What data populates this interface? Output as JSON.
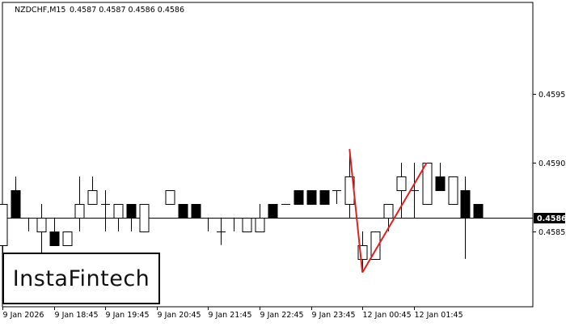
{
  "header": {
    "symbol": "NZDCHF,M15",
    "ohlc": "0.4587 0.4587 0.4586 0.4586"
  },
  "logo": {
    "text": "InstaFintech"
  },
  "colors": {
    "background": "#ffffff",
    "axis": "#000000",
    "candle_bull_fill": "#ffffff",
    "candle_bear_fill": "#000000",
    "pattern_line": "#e02020",
    "price_line": "#000000",
    "current_price_bg": "#000000",
    "current_price_text": "#ffffff"
  },
  "chart_data": {
    "type": "candlestick",
    "title": "NZDCHF,M15",
    "ylim": [
      0.45795,
      0.46017
    ],
    "y_ticks": [
      0.4585,
      0.459,
      0.4595
    ],
    "y_tick_labels": [
      "0.4585",
      "0.4590",
      "0.4595"
    ],
    "current_price": 0.4586,
    "current_price_label": "0.4586",
    "x_tick_labels": [
      "9 Jan 2026",
      "9 Jan 18:45",
      "9 Jan 19:45",
      "9 Jan 20:45",
      "9 Jan 21:45",
      "9 Jan 22:45",
      "9 Jan 23:45",
      "12 Jan 00:45",
      "12 Jan 01:45"
    ],
    "candles": [
      {
        "o": 0.4584,
        "h": 0.4587,
        "l": 0.4583,
        "c": 0.4587
      },
      {
        "o": 0.4588,
        "h": 0.4589,
        "l": 0.4586,
        "c": 0.4586
      },
      {
        "o": 0.4586,
        "h": 0.4586,
        "l": 0.4585,
        "c": 0.4586
      },
      {
        "o": 0.4585,
        "h": 0.4587,
        "l": 0.4583,
        "c": 0.4586
      },
      {
        "o": 0.4585,
        "h": 0.4586,
        "l": 0.4584,
        "c": 0.4584
      },
      {
        "o": 0.4584,
        "h": 0.4585,
        "l": 0.4584,
        "c": 0.4585
      },
      {
        "o": 0.4586,
        "h": 0.4589,
        "l": 0.4585,
        "c": 0.4587
      },
      {
        "o": 0.4587,
        "h": 0.4589,
        "l": 0.4587,
        "c": 0.4588
      },
      {
        "o": 0.4587,
        "h": 0.4588,
        "l": 0.4585,
        "c": 0.4587
      },
      {
        "o": 0.4586,
        "h": 0.4587,
        "l": 0.4585,
        "c": 0.4587
      },
      {
        "o": 0.4587,
        "h": 0.4587,
        "l": 0.4585,
        "c": 0.4586
      },
      {
        "o": 0.4585,
        "h": 0.4587,
        "l": 0.4585,
        "c": 0.4587
      },
      {
        "o": 0.4586,
        "h": 0.4586,
        "l": 0.4586,
        "c": 0.4586
      },
      {
        "o": 0.4587,
        "h": 0.4588,
        "l": 0.4587,
        "c": 0.4588
      },
      {
        "o": 0.4587,
        "h": 0.4587,
        "l": 0.4586,
        "c": 0.4586
      },
      {
        "o": 0.4587,
        "h": 0.4587,
        "l": 0.4586,
        "c": 0.4586
      },
      {
        "o": 0.4586,
        "h": 0.4586,
        "l": 0.4585,
        "c": 0.4586
      },
      {
        "o": 0.4585,
        "h": 0.4586,
        "l": 0.4584,
        "c": 0.4585
      },
      {
        "o": 0.4586,
        "h": 0.4586,
        "l": 0.4585,
        "c": 0.4586
      },
      {
        "o": 0.4585,
        "h": 0.4586,
        "l": 0.4585,
        "c": 0.4586
      },
      {
        "o": 0.4585,
        "h": 0.4587,
        "l": 0.4585,
        "c": 0.4586
      },
      {
        "o": 0.4587,
        "h": 0.4587,
        "l": 0.4586,
        "c": 0.4586
      },
      {
        "o": 0.4587,
        "h": 0.4587,
        "l": 0.4587,
        "c": 0.4587
      },
      {
        "o": 0.4588,
        "h": 0.4588,
        "l": 0.4587,
        "c": 0.4587
      },
      {
        "o": 0.4588,
        "h": 0.4588,
        "l": 0.4587,
        "c": 0.4587
      },
      {
        "o": 0.4588,
        "h": 0.4588,
        "l": 0.4587,
        "c": 0.4587
      },
      {
        "o": 0.4588,
        "h": 0.4588,
        "l": 0.4587,
        "c": 0.4588
      },
      {
        "o": 0.4587,
        "h": 0.4591,
        "l": 0.4586,
        "c": 0.4589
      },
      {
        "o": 0.4583,
        "h": 0.4585,
        "l": 0.4582,
        "c": 0.4584
      },
      {
        "o": 0.4583,
        "h": 0.4585,
        "l": 0.4583,
        "c": 0.4585
      },
      {
        "o": 0.4586,
        "h": 0.4587,
        "l": 0.4585,
        "c": 0.4587
      },
      {
        "o": 0.4588,
        "h": 0.459,
        "l": 0.4586,
        "c": 0.4589
      },
      {
        "o": 0.4588,
        "h": 0.459,
        "l": 0.4586,
        "c": 0.4588
      },
      {
        "o": 0.4587,
        "h": 0.459,
        "l": 0.4587,
        "c": 0.459
      },
      {
        "o": 0.4589,
        "h": 0.459,
        "l": 0.4588,
        "c": 0.4588
      },
      {
        "o": 0.4587,
        "h": 0.4589,
        "l": 0.4587,
        "c": 0.4589
      },
      {
        "o": 0.4588,
        "h": 0.4589,
        "l": 0.4583,
        "c": 0.4586
      },
      {
        "o": 0.4587,
        "h": 0.4587,
        "l": 0.4586,
        "c": 0.4586
      }
    ],
    "pattern_lines": [
      {
        "from": {
          "candle": 27,
          "price": 0.4591
        },
        "to": {
          "candle": 28,
          "price": 0.4582
        }
      },
      {
        "from": {
          "candle": 28,
          "price": 0.4582
        },
        "to": {
          "candle": 33,
          "price": 0.459
        }
      }
    ]
  }
}
